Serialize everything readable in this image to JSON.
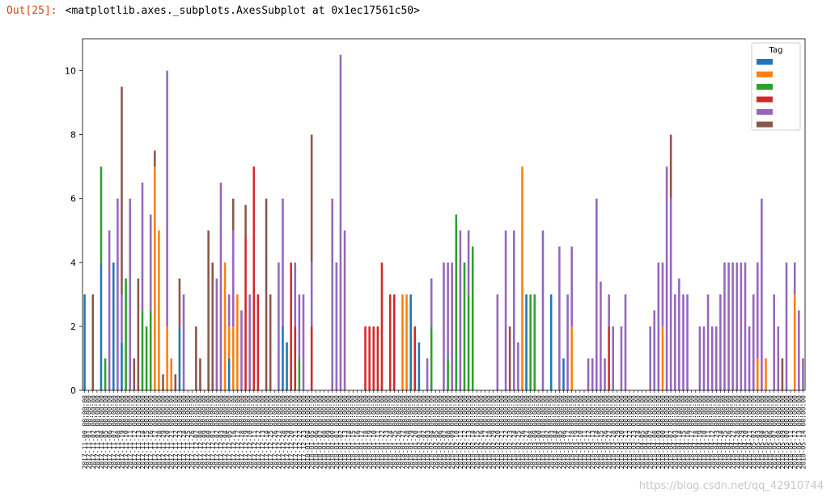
{
  "cell": {
    "prompt": "Out[25]:",
    "output": "<matplotlib.axes._subplots.AxesSubplot at 0x1ec17561c50>"
  },
  "watermark": "https://blog.csdn.net/qq_42910744",
  "chart_data": {
    "type": "bar",
    "stacked": true,
    "ylim": [
      0,
      11
    ],
    "yticks": [
      0,
      2,
      4,
      6,
      8,
      10
    ],
    "grid": false,
    "legend_title": "Tag",
    "legend_placement": "top-right",
    "colors": [
      "#1f77b4",
      "#ff7f0e",
      "#2ca02c",
      "#d62728",
      "#9467bd",
      "#8c564b"
    ],
    "series_names": [
      "",
      "",
      "",
      "",
      "",
      ""
    ],
    "x_tick_prefixes": [
      "2017-11-0",
      "2017-11-1",
      "2017-11-2",
      "2017-12-0",
      "2017-12-1",
      "2017-12-2",
      "2018-01-0",
      "2018-01-1",
      "2018-01-2",
      "2018-02-0",
      "2018-02-1",
      "2018-02-2",
      "2018-03-0",
      "2018-03-1",
      "2018-03-2",
      "2018-04-0",
      "2018-04-1",
      "2018-04-2",
      "2018-05-0",
      "2018-05-1",
      "2018-05-2"
    ],
    "bars": [
      [
        [
          0,
          3
        ]
      ],
      [],
      [
        [
          5,
          3
        ]
      ],
      [],
      [
        [
          0,
          4
        ],
        [
          2,
          3
        ]
      ],
      [
        [
          2,
          1
        ]
      ],
      [
        [
          4,
          5
        ]
      ],
      [
        [
          0,
          4
        ]
      ],
      [
        [
          4,
          6
        ]
      ],
      [
        [
          0,
          1.5
        ],
        [
          4,
          1.5
        ],
        [
          5,
          6.5
        ]
      ],
      [
        [
          2,
          3.5
        ]
      ],
      [
        [
          4,
          6
        ]
      ],
      [
        [
          5,
          1
        ]
      ],
      [
        [
          5,
          3.5
        ]
      ],
      [
        [
          2,
          2.5
        ],
        [
          4,
          4
        ]
      ],
      [
        [
          2,
          2
        ]
      ],
      [
        [
          2,
          2.5
        ],
        [
          4,
          3
        ]
      ],
      [
        [
          1,
          7
        ],
        [
          5,
          0.5
        ]
      ],
      [
        [
          1,
          5
        ]
      ],
      [
        [
          5,
          0.5
        ]
      ],
      [
        [
          1,
          2
        ],
        [
          4,
          8
        ]
      ],
      [
        [
          1,
          1
        ]
      ],
      [
        [
          5,
          0.5
        ]
      ],
      [
        [
          0,
          2
        ],
        [
          5,
          1.5
        ]
      ],
      [
        [
          4,
          3
        ]
      ],
      [],
      [],
      [
        [
          5,
          2
        ]
      ],
      [
        [
          5,
          1
        ]
      ],
      [],
      [
        [
          5,
          5
        ]
      ],
      [
        [
          5,
          4
        ]
      ],
      [
        [
          4,
          3.5
        ]
      ],
      [
        [
          4,
          6.5
        ]
      ],
      [
        [
          1,
          4
        ]
      ],
      [
        [
          0,
          1
        ],
        [
          1,
          1
        ],
        [
          4,
          1
        ]
      ],
      [
        [
          1,
          2
        ],
        [
          4,
          3
        ],
        [
          5,
          1
        ]
      ],
      [
        [
          1,
          3
        ]
      ],
      [
        [
          4,
          2.5
        ]
      ],
      [
        [
          3,
          4.8
        ],
        [
          5,
          1
        ]
      ],
      [
        [
          4,
          3
        ]
      ],
      [
        [
          3,
          7
        ]
      ],
      [
        [
          3,
          3
        ]
      ],
      [],
      [
        [
          5,
          6
        ]
      ],
      [
        [
          5,
          3
        ]
      ],
      [],
      [
        [
          4,
          4
        ]
      ],
      [
        [
          0,
          2
        ],
        [
          4,
          4
        ]
      ],
      [
        [
          0,
          1.5
        ]
      ],
      [
        [
          3,
          4
        ]
      ],
      [
        [
          3,
          2
        ],
        [
          4,
          2
        ]
      ],
      [
        [
          2,
          1
        ],
        [
          4,
          2
        ]
      ],
      [
        [
          4,
          3
        ]
      ],
      [],
      [
        [
          3,
          2
        ],
        [
          4,
          2
        ],
        [
          5,
          4
        ]
      ],
      [],
      [],
      [],
      [],
      [
        [
          4,
          6
        ]
      ],
      [
        [
          4,
          4
        ]
      ],
      [
        [
          4,
          10.5
        ]
      ],
      [
        [
          4,
          5
        ]
      ],
      [],
      [],
      [],
      [],
      [
        [
          3,
          2
        ]
      ],
      [
        [
          3,
          2
        ]
      ],
      [
        [
          3,
          2
        ]
      ],
      [
        [
          3,
          2
        ]
      ],
      [
        [
          3,
          4
        ]
      ],
      [],
      [
        [
          3,
          3
        ]
      ],
      [
        [
          3,
          3
        ]
      ],
      [],
      [
        [
          1,
          3
        ]
      ],
      [
        [
          1,
          3
        ]
      ],
      [
        [
          0,
          3
        ]
      ],
      [
        [
          3,
          2
        ]
      ],
      [
        [
          0,
          1.5
        ]
      ],
      [],
      [
        [
          4,
          1
        ]
      ],
      [
        [
          2,
          2
        ],
        [
          4,
          1.5
        ]
      ],
      [],
      [],
      [
        [
          4,
          4
        ]
      ],
      [
        [
          2,
          1
        ],
        [
          4,
          3
        ]
      ],
      [
        [
          4,
          4
        ]
      ],
      [
        [
          2,
          5.5
        ]
      ],
      [
        [
          4,
          5
        ]
      ],
      [
        [
          2,
          4
        ]
      ],
      [
        [
          2,
          3
        ],
        [
          4,
          2
        ]
      ],
      [
        [
          2,
          4.5
        ]
      ],
      [],
      [],
      [],
      [],
      [],
      [
        [
          4,
          3
        ]
      ],
      [],
      [
        [
          4,
          5
        ]
      ],
      [
        [
          5,
          2
        ]
      ],
      [
        [
          4,
          5
        ]
      ],
      [
        [
          4,
          1.5
        ]
      ],
      [
        [
          1,
          7
        ]
      ],
      [
        [
          0,
          3
        ]
      ],
      [
        [
          2,
          3
        ]
      ],
      [
        [
          2,
          3
        ]
      ],
      [],
      [
        [
          4,
          5
        ]
      ],
      [],
      [
        [
          0,
          3
        ]
      ],
      [],
      [
        [
          4,
          4.5
        ]
      ],
      [
        [
          0,
          1
        ]
      ],
      [
        [
          4,
          3
        ]
      ],
      [
        [
          1,
          2
        ],
        [
          4,
          2.5
        ]
      ],
      [],
      [],
      [],
      [
        [
          4,
          1
        ]
      ],
      [
        [
          4,
          1
        ]
      ],
      [
        [
          4,
          6
        ]
      ],
      [
        [
          4,
          3.4
        ]
      ],
      [
        [
          4,
          1
        ]
      ],
      [
        [
          3,
          2
        ],
        [
          4,
          1
        ]
      ],
      [
        [
          4,
          2
        ]
      ],
      [],
      [
        [
          4,
          2
        ]
      ],
      [
        [
          4,
          3
        ]
      ],
      [],
      [],
      [],
      [],
      [],
      [
        [
          4,
          2
        ]
      ],
      [
        [
          4,
          2.5
        ]
      ],
      [
        [
          4,
          4
        ]
      ],
      [
        [
          1,
          2
        ],
        [
          4,
          2
        ]
      ],
      [
        [
          4,
          7
        ]
      ],
      [
        [
          4,
          6
        ],
        [
          5,
          2
        ]
      ],
      [
        [
          4,
          3
        ]
      ],
      [
        [
          4,
          3.5
        ]
      ],
      [
        [
          4,
          3
        ]
      ],
      [
        [
          4,
          3
        ]
      ],
      [],
      [],
      [
        [
          4,
          2
        ]
      ],
      [
        [
          4,
          2
        ]
      ],
      [
        [
          4,
          3
        ]
      ],
      [
        [
          4,
          2
        ]
      ],
      [
        [
          4,
          2
        ]
      ],
      [
        [
          4,
          3
        ]
      ],
      [
        [
          4,
          4
        ]
      ],
      [
        [
          4,
          4
        ]
      ],
      [
        [
          4,
          4
        ]
      ],
      [
        [
          4,
          4
        ]
      ],
      [
        [
          4,
          4
        ]
      ],
      [
        [
          4,
          4
        ]
      ],
      [
        [
          4,
          2
        ]
      ],
      [
        [
          4,
          3
        ]
      ],
      [
        [
          1,
          1
        ],
        [
          4,
          3
        ]
      ],
      [
        [
          4,
          6
        ]
      ],
      [
        [
          1,
          1
        ]
      ],
      [],
      [
        [
          4,
          3
        ]
      ],
      [
        [
          4,
          2
        ]
      ],
      [
        [
          5,
          1
        ]
      ],
      [
        [
          4,
          4
        ]
      ],
      [],
      [
        [
          1,
          3
        ],
        [
          4,
          1
        ]
      ],
      [
        [
          4,
          2.5
        ]
      ],
      [
        [
          4,
          1
        ]
      ]
    ]
  }
}
